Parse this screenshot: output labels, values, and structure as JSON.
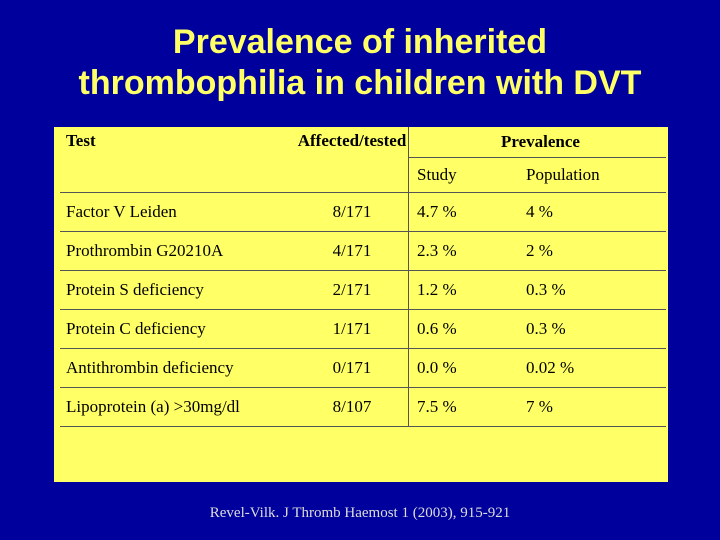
{
  "title": {
    "line1": "Prevalence of inherited",
    "line2": "thrombophilia in children with DVT"
  },
  "table": {
    "headers": {
      "test": "Test",
      "affected": "Affected/tested",
      "prevalence": "Prevalence",
      "study": "Study",
      "population": "Population"
    },
    "rows": [
      {
        "test": "Factor V Leiden",
        "affected": "8/171",
        "study": "4.7 %",
        "population": "4 %"
      },
      {
        "test": "Prothrombin G20210A",
        "affected": "4/171",
        "study": "2.3 %",
        "population": "2 %"
      },
      {
        "test": "Protein S deficiency",
        "affected": "2/171",
        "study": "1.2 %",
        "population": "0.3 %"
      },
      {
        "test": "Protein C deficiency",
        "affected": "1/171",
        "study": "0.6 %",
        "population": "0.3 %"
      },
      {
        "test": "Antithrombin deficiency",
        "affected": "0/171",
        "study": "0.0 %",
        "population": "0.02 %"
      },
      {
        "test": "Lipoprotein (a) >30mg/dl",
        "affected": "8/107",
        "study": "7.5 %",
        "population": "7 %"
      }
    ]
  },
  "footer": {
    "citation": "Revel-Vilk. J Thromb Haemost 1 (2003), 915-921"
  },
  "colors": {
    "background": "#00009c",
    "title": "#ffff66",
    "panel": "#ffff66"
  }
}
